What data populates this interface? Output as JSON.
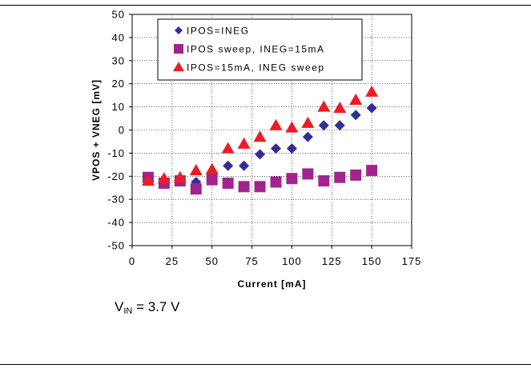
{
  "chart_data": {
    "type": "scatter",
    "title": "",
    "xlabel": "Current [mA]",
    "ylabel": "VPOS + VNEG [mV]",
    "xlim": [
      0,
      175
    ],
    "ylim": [
      -50,
      50
    ],
    "xticks": [
      0,
      25,
      50,
      75,
      100,
      125,
      150,
      175
    ],
    "yticks": [
      50,
      40,
      30,
      20,
      10,
      0,
      -10,
      -20,
      -30,
      -40,
      -50
    ],
    "grid": true,
    "legend_position": "top-left",
    "series": [
      {
        "name": "IPOS=INEG",
        "marker": "diamond",
        "color": "#2E3192",
        "x": [
          10,
          20,
          30,
          40,
          50,
          60,
          70,
          80,
          90,
          100,
          110,
          120,
          130,
          140,
          150
        ],
        "y": [
          -22,
          -22,
          -22,
          -22.5,
          -19,
          -15.5,
          -15.5,
          -10.5,
          -8,
          -8,
          -3,
          2,
          2,
          6.5,
          9.5
        ]
      },
      {
        "name": "IPOS sweep, INEG=15mA",
        "marker": "square",
        "color": "#A3238E",
        "x": [
          10,
          20,
          30,
          40,
          50,
          60,
          70,
          80,
          90,
          100,
          110,
          120,
          130,
          140,
          150
        ],
        "y": [
          -20.5,
          -23,
          -22,
          -25.5,
          -21.5,
          -23,
          -24.5,
          -24.5,
          -22.5,
          -21,
          -19,
          -22,
          -20.5,
          -19.5,
          -17.5
        ]
      },
      {
        "name": "IPOS=15mA, INEG sweep",
        "marker": "triangle",
        "color": "#ED1C24",
        "x": [
          10,
          20,
          30,
          40,
          50,
          60,
          70,
          80,
          90,
          100,
          110,
          120,
          130,
          140,
          150
        ],
        "y": [
          -22,
          -21,
          -20.5,
          -17.5,
          -17,
          -8,
          -6,
          -3,
          2,
          1,
          3,
          10,
          9.5,
          13,
          16.5
        ]
      }
    ]
  },
  "annotation": {
    "prefix": "V",
    "subscript": "IN",
    "suffix": " = 3.7 V"
  }
}
